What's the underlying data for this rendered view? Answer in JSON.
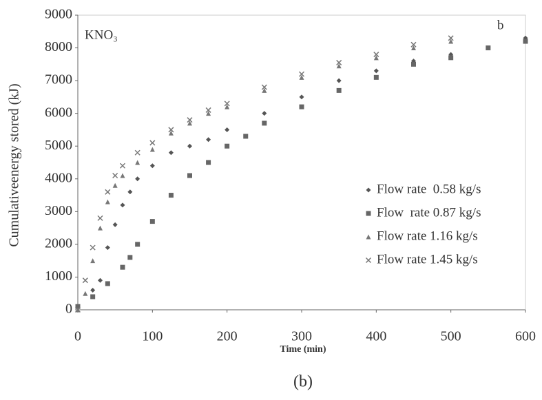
{
  "chart_data": {
    "type": "scatter",
    "annotation": "KNO₃",
    "panel_label": "b",
    "caption": "(b)",
    "x_label": "Time (min)",
    "y_label": "Cumulativeenergy stored  (kJ)",
    "xlim": [
      0,
      600
    ],
    "xticks": [
      0,
      100,
      200,
      300,
      400,
      500,
      600
    ],
    "ylim": [
      0,
      9000
    ],
    "yticks": [
      0,
      1000,
      2000,
      3000,
      4000,
      5000,
      6000,
      7000,
      8000,
      9000
    ],
    "legend_position": "center right",
    "series": [
      {
        "name": "Flow rate  0.58 kg/s",
        "color": "#555555",
        "marker": "diamond",
        "x": [
          0,
          20,
          30,
          40,
          50,
          60,
          70,
          80,
          100,
          125,
          150,
          175,
          200,
          250,
          300,
          350,
          400,
          450,
          500,
          550,
          600
        ],
        "values": [
          100,
          600,
          900,
          1900,
          2600,
          3200,
          3600,
          4000,
          4400,
          4800,
          5000,
          5200,
          5500,
          6000,
          6500,
          7000,
          7300,
          7600,
          7800,
          8000,
          8300
        ]
      },
      {
        "name": "Flow  rate 0.87 kg/s",
        "color": "#666666",
        "marker": "square",
        "x": [
          0,
          20,
          40,
          60,
          70,
          80,
          100,
          125,
          150,
          175,
          200,
          225,
          250,
          300,
          350,
          400,
          450,
          500,
          550,
          600
        ],
        "values": [
          100,
          400,
          800,
          1300,
          1600,
          2000,
          2700,
          3500,
          4100,
          4500,
          5000,
          5300,
          5700,
          6200,
          6700,
          7100,
          7500,
          7700,
          8000,
          8200
        ]
      },
      {
        "name": "Flow rate 1.16 kg/s",
        "color": "#777777",
        "marker": "triangle",
        "x": [
          0,
          10,
          20,
          30,
          40,
          50,
          60,
          80,
          100,
          125,
          150,
          175,
          200,
          250,
          300,
          350,
          400,
          450,
          500
        ],
        "values": [
          0,
          500,
          1500,
          2500,
          3300,
          3800,
          4100,
          4500,
          4900,
          5400,
          5700,
          6000,
          6200,
          6700,
          7100,
          7450,
          7700,
          8000,
          8200
        ]
      },
      {
        "name": "Flow rate 1.45 kg/s",
        "color": "#777777",
        "marker": "cross",
        "x": [
          0,
          10,
          20,
          30,
          40,
          50,
          60,
          80,
          100,
          125,
          150,
          175,
          200,
          250,
          300,
          350,
          400,
          450,
          500
        ],
        "values": [
          0,
          900,
          1900,
          2800,
          3600,
          4100,
          4400,
          4800,
          5100,
          5500,
          5800,
          6100,
          6300,
          6800,
          7200,
          7550,
          7800,
          8100,
          8300
        ]
      }
    ]
  }
}
